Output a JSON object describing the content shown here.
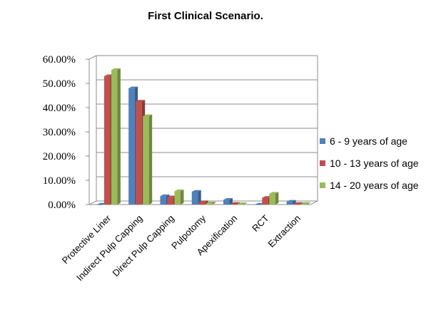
{
  "chart_data": {
    "type": "bar",
    "title": "First Clinical Scenario.",
    "categories": [
      "Protective Liner",
      "Indirect Pulp Capping",
      "Direct Pulp Capping",
      "Pulpotomy",
      "Apexification",
      "RCT",
      "Extraction"
    ],
    "series": [
      {
        "name": "6 - 9 years of age",
        "color": "#4f81bd",
        "values": [
          0.0,
          48.0,
          3.5,
          5.3,
          2.0,
          0.0,
          1.2
        ]
      },
      {
        "name": "10 - 13 years of age",
        "color": "#c0504d",
        "values": [
          53.0,
          42.5,
          3.0,
          1.0,
          0.3,
          2.8,
          0.3
        ]
      },
      {
        "name": "14 - 20 years of age",
        "color": "#9bbb59",
        "values": [
          55.5,
          36.5,
          5.5,
          0.5,
          0.2,
          4.5,
          0.3
        ]
      }
    ],
    "ytick_labels": [
      "0.00%",
      "10.00%",
      "20.00%",
      "30.00%",
      "40.00%",
      "50.00%",
      "60.00%"
    ],
    "ylim": [
      0,
      60
    ],
    "grid": true,
    "legend_position": "right"
  }
}
